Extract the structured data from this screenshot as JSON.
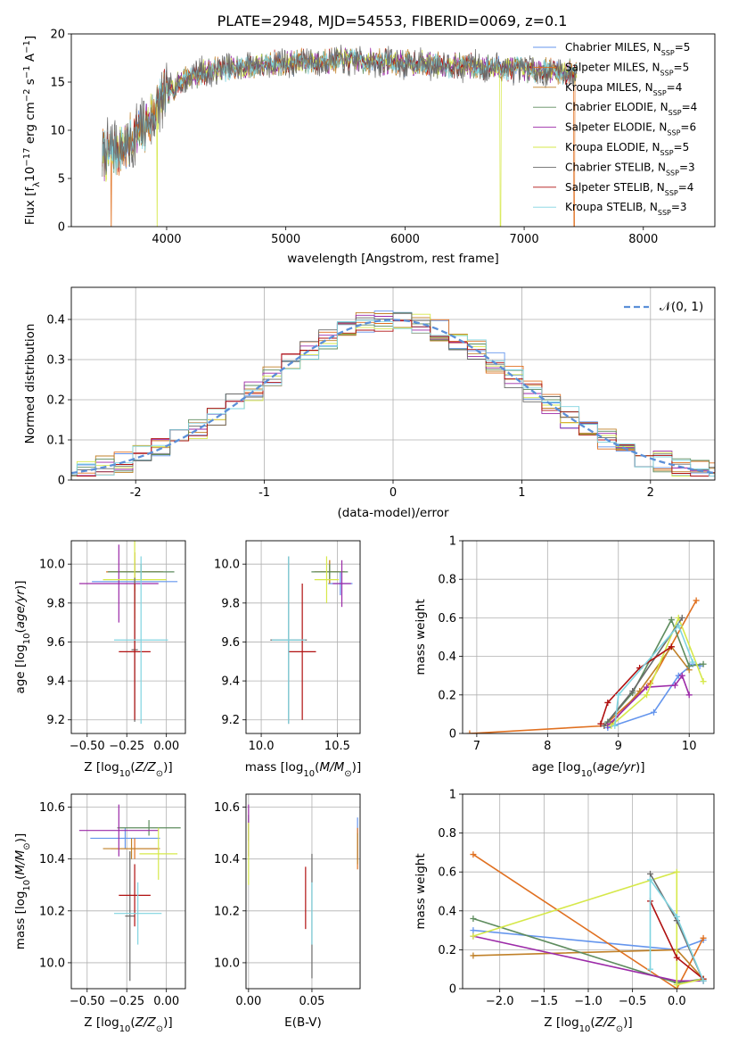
{
  "figure_title": "PLATE=2948, MJD=54553, FIBERID=0069, z=0.1",
  "models": [
    {
      "name": "Chabrier MILES, N$_{SSP}$=5",
      "prefix": "Chabrier MILES, N",
      "suffix": "=5",
      "color": "#6495ed"
    },
    {
      "name": "Salpeter MILES, N$_{SSP}$=5",
      "prefix": "Salpeter MILES, N",
      "suffix": "=5",
      "color": "#e07020"
    },
    {
      "name": "Kroupa MILES, N$_{SSP}$=4",
      "prefix": "Kroupa MILES, N",
      "suffix": "=4",
      "color": "#c08028"
    },
    {
      "name": "Chabrier ELODIE, N$_{SSP}$=4",
      "prefix": "Chabrier ELODIE, N",
      "suffix": "=4",
      "color": "#5e8c5e"
    },
    {
      "name": "Salpeter ELODIE, N$_{SSP}$=6",
      "prefix": "Salpeter ELODIE, N",
      "suffix": "=6",
      "color": "#9c2aa8"
    },
    {
      "name": "Kroupa ELODIE, N$_{SSP}$=5",
      "prefix": "Kroupa ELODIE, N",
      "suffix": "=5",
      "color": "#d6e84a"
    },
    {
      "name": "Chabrier STELIB, N$_{SSP}$=3",
      "prefix": "Chabrier STELIB, N",
      "suffix": "=3",
      "color": "#6a6a6a"
    },
    {
      "name": "Salpeter STELIB, N$_{SSP}$=4",
      "prefix": "Salpeter STELIB, N",
      "suffix": "=4",
      "color": "#b01010"
    },
    {
      "name": "Kroupa STELIB, N$_{SSP}$=3",
      "prefix": "Kroupa STELIB, N",
      "suffix": "=3",
      "color": "#80d4e0"
    }
  ],
  "legend_sub": "SSP",
  "hist_legend": "𝒩(0, 1)",
  "chart_data": [
    {
      "id": "spectrum",
      "type": "line",
      "xlabel": "wavelength [Angstrom, rest frame]",
      "ylabel": "Flux [f$_\\lambda$10$^{-17}$ erg cm$^{-2}$ s$^{-1}$ A$^{-1}$]",
      "ylabel_parts": [
        "Flux [f",
        "λ",
        "10",
        "−17",
        " erg cm",
        "−2",
        " s",
        "−1",
        " A",
        "−1",
        "]"
      ],
      "xlim": [
        3200,
        8600
      ],
      "ylim": [
        0,
        20
      ],
      "xticks": [
        4000,
        5000,
        6000,
        7000,
        8000
      ],
      "yticks": [
        0,
        5,
        10,
        15,
        20
      ],
      "wavelength_range": [
        3460,
        7440
      ],
      "flux_shape": [
        [
          3460,
          7.5
        ],
        [
          3600,
          8
        ],
        [
          3800,
          10
        ],
        [
          3950,
          13
        ],
        [
          4100,
          15
        ],
        [
          4300,
          16
        ],
        [
          4600,
          16.5
        ],
        [
          5000,
          17
        ],
        [
          5500,
          17.3
        ],
        [
          6000,
          17
        ],
        [
          6500,
          16.7
        ],
        [
          7000,
          16.3
        ],
        [
          7440,
          16
        ]
      ],
      "truncation": [
        {
          "model": "Salpeter MILES",
          "x": 3535
        },
        {
          "model": "Kroupa ELODIE",
          "x": 3920
        },
        {
          "model": "Kroupa ELODIE",
          "x": 6800
        },
        {
          "model": "Salpeter MILES",
          "x": 7420
        }
      ]
    },
    {
      "id": "residual_hist",
      "type": "histogram",
      "xlabel": "(data-model)/error",
      "ylabel": "Normed distribution",
      "xlim": [
        -2.5,
        2.5
      ],
      "ylim": [
        0,
        0.48
      ],
      "xticks": [
        -2,
        -1,
        0,
        1,
        2
      ],
      "yticks": [
        0.0,
        0.1,
        0.2,
        0.3,
        0.4
      ],
      "reference": "N(0,1)",
      "grid": true
    },
    {
      "id": "age_vs_Z",
      "type": "errorbar",
      "xlabel": "Z [log$_{10}$(Z/Z$_\\odot$)]",
      "ylabel": "age  [log$_{10}$(age/yr)]",
      "xlim": [
        -0.6,
        0.12
      ],
      "ylim": [
        9.13,
        10.12
      ],
      "xticks": [
        -0.5,
        -0.25,
        0.0
      ],
      "xtick_labels": [
        "−0.50",
        "−0.25",
        "0.00"
      ],
      "yticks": [
        9.2,
        9.4,
        9.6,
        9.8,
        10.0
      ],
      "ytick_labels": [
        "9.2",
        "9.4",
        "9.6",
        "9.8",
        "10.0"
      ],
      "points": [
        {
          "model": "Chabrier MILES",
          "x": -0.2,
          "xerr": 0.27,
          "y": 9.91,
          "yerr": 0.1
        },
        {
          "model": "Salpeter MILES",
          "x": -0.2,
          "xerr": 0.18,
          "y": 9.96,
          "yerr": 0.1
        },
        {
          "model": "Kroupa MILES",
          "x": -0.2,
          "xerr": 0.16,
          "y": 9.96,
          "yerr": 0.1
        },
        {
          "model": "Chabrier ELODIE",
          "x": -0.16,
          "xerr": 0.21,
          "y": 9.96,
          "yerr": 0.04
        },
        {
          "model": "Salpeter ELODIE",
          "x": -0.3,
          "xerr": 0.25,
          "y": 9.9,
          "yerr": 0.2
        },
        {
          "model": "Kroupa ELODIE",
          "x": -0.2,
          "xerr": 0.2,
          "y": 9.92,
          "yerr": 0.2
        },
        {
          "model": "Chabrier STELIB",
          "x": -0.2,
          "xerr": 0.02,
          "y": 9.56,
          "yerr": 0.37
        },
        {
          "model": "Salpeter STELIB",
          "x": -0.2,
          "xerr": 0.1,
          "y": 9.55,
          "yerr": 0.35
        },
        {
          "model": "Kroupa STELIB",
          "x": -0.16,
          "xerr": 0.17,
          "y": 9.61,
          "yerr": 0.43
        }
      ]
    },
    {
      "id": "age_vs_mass",
      "type": "errorbar",
      "xlabel": "mass [log$_{10}$(M/M$_\\odot$)]",
      "ylabel": "",
      "xlim": [
        9.9,
        10.65
      ],
      "ylim": [
        9.13,
        10.12
      ],
      "xticks": [
        10.0,
        10.5
      ],
      "xtick_labels": [
        "10.0",
        "10.5"
      ],
      "yticks": [
        9.2,
        9.4,
        9.6,
        9.8,
        10.0
      ],
      "ytick_labels": [
        "9.2",
        "9.4",
        "9.6",
        "9.8",
        "10.0"
      ],
      "points": [
        {
          "model": "Chabrier MILES",
          "x": 10.52,
          "xerr": 0.08,
          "y": 9.9,
          "yerr": 0.06
        },
        {
          "model": "Salpeter MILES",
          "x": 10.45,
          "xerr": 0.1,
          "y": 9.96,
          "yerr": 0.06
        },
        {
          "model": "Kroupa MILES",
          "x": 10.45,
          "xerr": 0.06,
          "y": 9.96,
          "yerr": 0.06
        },
        {
          "model": "Chabrier ELODIE",
          "x": 10.45,
          "xerr": 0.12,
          "y": 9.96,
          "yerr": 0.04
        },
        {
          "model": "Salpeter ELODIE",
          "x": 10.53,
          "xerr": 0.06,
          "y": 9.9,
          "yerr": 0.12
        },
        {
          "model": "Kroupa ELODIE",
          "x": 10.43,
          "xerr": 0.08,
          "y": 9.92,
          "yerr": 0.12
        },
        {
          "model": "Chabrier STELIB",
          "x": 10.18,
          "xerr": 0.12,
          "y": 9.61,
          "yerr": 0.43
        },
        {
          "model": "Salpeter STELIB",
          "x": 10.27,
          "xerr": 0.09,
          "y": 9.55,
          "yerr": 0.35
        },
        {
          "model": "Kroupa STELIB",
          "x": 10.18,
          "xerr": 0.11,
          "y": 9.61,
          "yerr": 0.43
        }
      ]
    },
    {
      "id": "massweight_vs_age",
      "type": "line",
      "xlabel": "age  [log$_{10}$(age/yr)]",
      "ylabel": "mass weight",
      "xlim": [
        6.8,
        10.35
      ],
      "ylim": [
        0,
        1
      ],
      "xticks": [
        7,
        8,
        9,
        10
      ],
      "yticks": [
        0.0,
        0.2,
        0.4,
        0.6,
        0.8,
        1.0
      ],
      "grid": true,
      "series": [
        {
          "model": "Chabrier MILES",
          "x": [
            8.85,
            9.5,
            9.85,
            10.05,
            10.15
          ],
          "y": [
            0.03,
            0.11,
            0.3,
            0.36,
            0.35
          ]
        },
        {
          "model": "Salpeter MILES",
          "x": [
            6.9,
            8.8,
            9.45,
            10.1
          ],
          "y": [
            0.0,
            0.04,
            0.26,
            0.69
          ]
        },
        {
          "model": "Kroupa MILES",
          "x": [
            8.9,
            9.3,
            9.75,
            10.0
          ],
          "y": [
            0.05,
            0.22,
            0.45,
            0.33
          ]
        },
        {
          "model": "Chabrier ELODIE",
          "x": [
            8.85,
            9.2,
            9.75,
            10.0,
            10.2
          ],
          "y": [
            0.06,
            0.21,
            0.59,
            0.35,
            0.36
          ]
        },
        {
          "model": "Salpeter ELODIE",
          "x": [
            8.85,
            9.4,
            9.8,
            9.9,
            10.0
          ],
          "y": [
            0.04,
            0.24,
            0.25,
            0.3,
            0.2
          ]
        },
        {
          "model": "Kroupa ELODIE",
          "x": [
            8.9,
            9.4,
            9.85,
            10.2
          ],
          "y": [
            0.04,
            0.2,
            0.6,
            0.27
          ]
        },
        {
          "model": "Chabrier STELIB",
          "x": [
            8.8,
            9.2,
            9.9
          ],
          "y": [
            0.04,
            0.22,
            0.6
          ]
        },
        {
          "model": "Salpeter STELIB",
          "x": [
            8.75,
            8.85,
            9.3,
            9.75
          ],
          "y": [
            0.05,
            0.16,
            0.34,
            0.45
          ]
        },
        {
          "model": "Kroupa STELIB",
          "x": [
            8.95,
            9.0,
            9.85,
            10.05
          ],
          "y": [
            0.04,
            0.2,
            0.56,
            0.37
          ]
        }
      ]
    },
    {
      "id": "mass_vs_Z",
      "type": "errorbar",
      "xlabel": "Z [log$_{10}$(Z/Z$_\\odot$)]",
      "ylabel": "mass [log$_{10}$(M/M$_\\odot$)]",
      "xlim": [
        -0.6,
        0.12
      ],
      "ylim": [
        9.9,
        10.65
      ],
      "xticks": [
        -0.5,
        -0.25,
        0.0
      ],
      "xtick_labels": [
        "−0.50",
        "−0.25",
        "0.00"
      ],
      "yticks": [
        10.0,
        10.2,
        10.4,
        10.6
      ],
      "ytick_labels": [
        "10.0",
        "10.2",
        "10.4",
        "10.6"
      ],
      "points": [
        {
          "model": "Chabrier MILES",
          "x": -0.26,
          "xerr": 0.22,
          "y": 10.48,
          "yerr": 0.04
        },
        {
          "model": "Salpeter MILES",
          "x": -0.2,
          "xerr": 0.15,
          "y": 10.44,
          "yerr": 0.04
        },
        {
          "model": "Kroupa MILES",
          "x": -0.22,
          "xerr": 0.18,
          "y": 10.44,
          "yerr": 0.04
        },
        {
          "model": "Chabrier ELODIE",
          "x": -0.11,
          "xerr": 0.2,
          "y": 10.52,
          "yerr": 0.03
        },
        {
          "model": "Salpeter ELODIE",
          "x": -0.3,
          "xerr": 0.25,
          "y": 10.51,
          "yerr": 0.1
        },
        {
          "model": "Kroupa ELODIE",
          "x": -0.05,
          "xerr": 0.12,
          "y": 10.42,
          "yerr": 0.1
        },
        {
          "model": "Chabrier STELIB",
          "x": -0.23,
          "xerr": 0.03,
          "y": 10.18,
          "yerr": 0.25
        },
        {
          "model": "Salpeter STELIB",
          "x": -0.2,
          "xerr": 0.1,
          "y": 10.26,
          "yerr": 0.12
        },
        {
          "model": "Kroupa STELIB",
          "x": -0.18,
          "xerr": 0.15,
          "y": 10.19,
          "yerr": 0.12
        }
      ]
    },
    {
      "id": "mass_vs_EBV",
      "type": "errorbar",
      "xlabel": "E(B-V)",
      "ylabel": "",
      "xlim": [
        -0.002,
        0.088
      ],
      "ylim": [
        9.9,
        10.65
      ],
      "xticks": [
        0.0,
        0.05
      ],
      "xtick_labels": [
        "0.00",
        "0.05"
      ],
      "yticks": [
        10.0,
        10.2,
        10.4,
        10.6
      ],
      "ytick_labels": [
        "10.0",
        "10.2",
        "10.4",
        "10.6"
      ],
      "points": [
        {
          "model": "Chabrier MILES",
          "x": 0.086,
          "xerr": 0,
          "y": 10.48,
          "yerr": 0.08
        },
        {
          "model": "Salpeter MILES",
          "x": 0.086,
          "xerr": 0,
          "y": 10.44,
          "yerr": 0.08
        },
        {
          "model": "Kroupa MILES",
          "x": 0.086,
          "xerr": 0,
          "y": 10.44,
          "yerr": 0.06
        },
        {
          "model": "Chabrier ELODIE",
          "x": 0.0,
          "xerr": 0,
          "y": 10.52,
          "yerr": 0.05
        },
        {
          "model": "Salpeter ELODIE",
          "x": 0.0,
          "xerr": 0,
          "y": 10.51,
          "yerr": 0.1
        },
        {
          "model": "Kroupa ELODIE",
          "x": 0.0,
          "xerr": 0,
          "y": 10.42,
          "yerr": 0.12
        },
        {
          "model": "Chabrier STELIB",
          "x": 0.05,
          "xerr": 0,
          "y": 10.18,
          "yerr": 0.24
        },
        {
          "model": "Salpeter STELIB",
          "x": 0.045,
          "xerr": 0,
          "y": 10.25,
          "yerr": 0.12
        },
        {
          "model": "Kroupa STELIB",
          "x": 0.05,
          "xerr": 0,
          "y": 10.19,
          "yerr": 0.12
        }
      ]
    },
    {
      "id": "massweight_vs_Z",
      "type": "line",
      "xlabel": "Z [log$_{10}$(Z/Z$_\\odot$)]",
      "ylabel": "mass weight",
      "xlim": [
        -2.42,
        0.42
      ],
      "ylim": [
        0,
        1
      ],
      "xticks": [
        -2.0,
        -1.5,
        -1.0,
        -0.5,
        0.0
      ],
      "xtick_labels": [
        "−2.0",
        "−1.5",
        "−1.0",
        "−0.5",
        "0.0"
      ],
      "yticks": [
        0.0,
        0.2,
        0.4,
        0.6,
        0.8,
        1.0
      ],
      "grid": true,
      "series": [
        {
          "model": "Chabrier MILES",
          "x": [
            -2.3,
            0.0,
            0.3
          ],
          "y": [
            0.3,
            0.2,
            0.25
          ]
        },
        {
          "model": "Salpeter MILES",
          "x": [
            -2.3,
            0.0,
            0.3
          ],
          "y": [
            0.69,
            0.0,
            0.26
          ]
        },
        {
          "model": "Kroupa MILES",
          "x": [
            -2.3,
            0.0,
            0.3
          ],
          "y": [
            0.17,
            0.2,
            0.05
          ]
        },
        {
          "model": "Chabrier ELODIE",
          "x": [
            -2.3,
            0.0,
            0.3
          ],
          "y": [
            0.36,
            0.03,
            0.05
          ]
        },
        {
          "model": "Salpeter ELODIE",
          "x": [
            -2.3,
            0.0,
            0.3
          ],
          "y": [
            0.27,
            0.04,
            0.04
          ]
        },
        {
          "model": "Kroupa ELODIE",
          "x": [
            -2.3,
            0.0,
            0.0,
            0.3
          ],
          "y": [
            0.27,
            0.6,
            0.02,
            0.05
          ]
        },
        {
          "model": "Chabrier STELIB",
          "x": [
            -0.3,
            0.0,
            0.3
          ],
          "y": [
            0.59,
            0.35,
            0.04
          ]
        },
        {
          "model": "Salpeter STELIB",
          "x": [
            -0.3,
            0.0,
            0.3
          ],
          "y": [
            0.45,
            0.16,
            0.05
          ]
        },
        {
          "model": "Kroupa STELIB",
          "x": [
            -0.3,
            -0.3,
            0.0,
            0.3
          ],
          "y": [
            0.1,
            0.56,
            0.37,
            0.04
          ]
        }
      ]
    }
  ]
}
